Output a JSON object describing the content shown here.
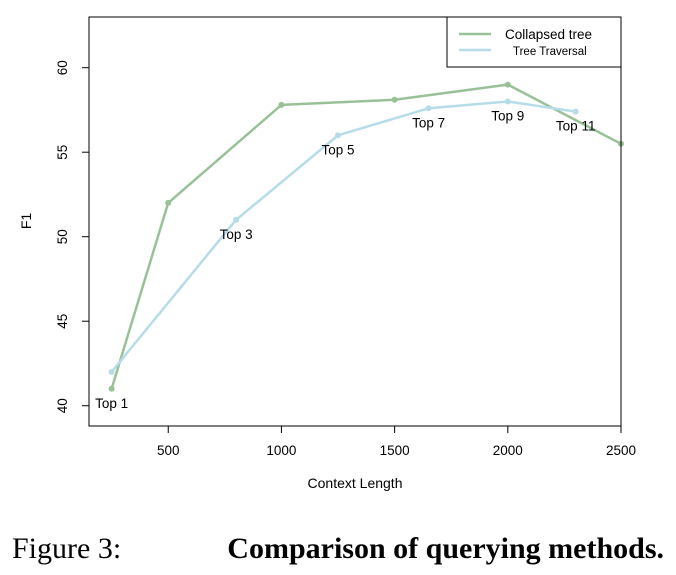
{
  "chart_data": {
    "type": "line",
    "xlabel": "Context Length",
    "ylabel": "F1",
    "xlim": [
      150,
      2500
    ],
    "ylim": [
      38.8,
      63.0
    ],
    "x_ticks": [
      500,
      1000,
      1500,
      2000,
      2500
    ],
    "y_ticks": [
      40,
      45,
      50,
      55,
      60
    ],
    "x_tick_labels": [
      "500",
      "1000",
      "1500",
      "2000",
      "2500"
    ],
    "y_tick_labels": [
      "40",
      "45",
      "50",
      "55",
      "60"
    ],
    "grid": false,
    "legend_position": "top-right",
    "series": [
      {
        "name": "Collapsed tree",
        "color": "#99c198",
        "x": [
          250,
          500,
          1000,
          1500,
          2000,
          2500
        ],
        "y": [
          41,
          52,
          57.8,
          58.1,
          59,
          55.5
        ]
      },
      {
        "name": "Tree Traversal",
        "color": "#b6dce8",
        "x": [
          250,
          800,
          1250,
          1650,
          2000,
          2300
        ],
        "y": [
          42,
          51,
          56,
          57.6,
          58,
          57.4
        ]
      }
    ],
    "annotations": [
      {
        "text": "Top 1",
        "x": 250,
        "y": 41
      },
      {
        "text": "Top 3",
        "x": 800,
        "y": 51
      },
      {
        "text": "Top 5",
        "x": 1250,
        "y": 56
      },
      {
        "text": "Top 7",
        "x": 1650,
        "y": 57.6
      },
      {
        "text": "Top 9",
        "x": 2000,
        "y": 58
      },
      {
        "text": "Top 11",
        "x": 2300,
        "y": 57.4
      }
    ]
  },
  "caption": {
    "label": "Figure 3:",
    "text": "Comparison of querying methods."
  }
}
